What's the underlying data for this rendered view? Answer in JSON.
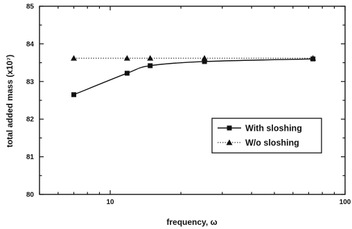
{
  "chart_data": {
    "type": "line",
    "title": "",
    "xlabel": "frequency, ω",
    "ylabel": "total added mass (x10⁷)",
    "x_scale": "log",
    "xlim": [
      5,
      100
    ],
    "ylim": [
      80,
      85
    ],
    "x_tick_values": [
      10,
      100
    ],
    "x_tick_labels": [
      "10",
      "100"
    ],
    "y_tick_values": [
      80,
      81,
      82,
      83,
      84,
      85
    ],
    "y_tick_labels": [
      "80",
      "81",
      "82",
      "83",
      "84",
      "85"
    ],
    "grid": false,
    "legend_position": "lower-right",
    "series": [
      {
        "name": "With sloshing",
        "marker": "square",
        "line_style": "solid",
        "color": "#111111",
        "x": [
          7,
          11.8,
          14.8,
          25.2,
          73
        ],
        "y": [
          82.65,
          83.22,
          83.42,
          83.53,
          83.6
        ]
      },
      {
        "name": "W/o sloshing",
        "marker": "triangle",
        "line_style": "dotted",
        "color": "#111111",
        "x": [
          7,
          11.8,
          14.8,
          25.2,
          73
        ],
        "y": [
          83.62,
          83.62,
          83.62,
          83.62,
          83.62
        ]
      }
    ]
  }
}
